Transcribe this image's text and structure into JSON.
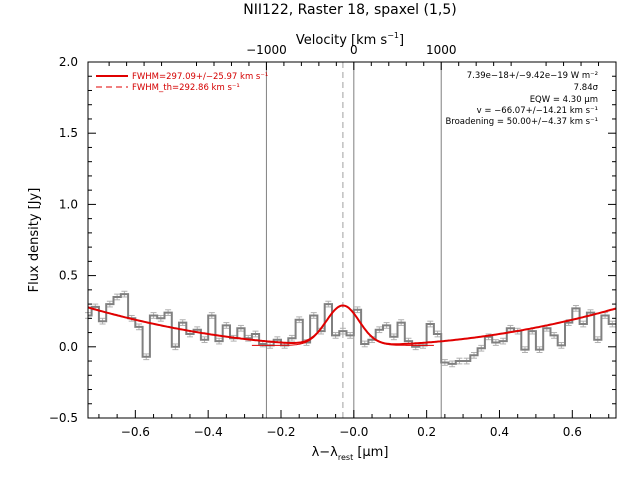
{
  "chart_data": {
    "type": "line",
    "title": "NII122, Raster 18, spaxel (1,5)",
    "xlabel": "λ−λ_rest [μm]",
    "xlabel_parts": {
      "main": "λ−λ",
      "sub": "rest",
      "rest": " [μm]"
    },
    "ylabel": "Flux density [Jy]",
    "top_axis_label": "Velocity [km s⁻¹]",
    "top_axis_label_parts": {
      "main": "Velocity [km s",
      "sup": "−1",
      "end": "]"
    },
    "xlim": [
      -0.73,
      0.72
    ],
    "ylim": [
      -0.5,
      2.0
    ],
    "x_ticks": [
      -0.6,
      -0.4,
      -0.2,
      0.0,
      0.2,
      0.4,
      0.6
    ],
    "x_tick_labels": [
      "−0.6",
      "−0.4",
      "−0.2",
      "−0.0",
      "0.2",
      "0.4",
      "0.6"
    ],
    "y_ticks": [
      -0.5,
      0.0,
      0.5,
      1.0,
      1.5,
      2.0
    ],
    "y_tick_labels": [
      "−0.5",
      "0.0",
      "0.5",
      "1.0",
      "1.5",
      "2.0"
    ],
    "top_ticks": [
      -1000,
      0,
      1000
    ],
    "top_tick_labels": [
      "−1000",
      "0",
      "1000"
    ],
    "vertical_lines": [
      -0.24,
      0.0,
      0.24
    ],
    "dashed_line_x": -0.03,
    "legend": [
      {
        "label": "FWHM=297.09+/−25.97 km s⁻¹",
        "style": "solid"
      },
      {
        "label": "FWHM_th=292.86 km s⁻¹",
        "style": "dashed"
      }
    ],
    "annotations": [
      "7.39e−18+/−9.42e−19 W m⁻²",
      "7.84σ",
      "EQW = 4.30 μm",
      "v = −66.07+/−14.21 km s⁻¹",
      "Broadening = 50.00+/−4.37 km s⁻¹"
    ],
    "spectrum": {
      "x": [
        -0.73,
        -0.71,
        -0.69,
        -0.67,
        -0.65,
        -0.63,
        -0.61,
        -0.59,
        -0.57,
        -0.55,
        -0.53,
        -0.51,
        -0.49,
        -0.47,
        -0.45,
        -0.43,
        -0.41,
        -0.39,
        -0.37,
        -0.35,
        -0.33,
        -0.31,
        -0.29,
        -0.27,
        -0.25,
        -0.23,
        -0.21,
        -0.19,
        -0.17,
        -0.15,
        -0.13,
        -0.11,
        -0.09,
        -0.07,
        -0.05,
        -0.03,
        -0.01,
        0.01,
        0.03,
        0.05,
        0.07,
        0.09,
        0.11,
        0.13,
        0.15,
        0.17,
        0.19,
        0.21,
        0.23,
        0.25,
        0.27,
        0.29,
        0.31,
        0.33,
        0.35,
        0.37,
        0.39,
        0.41,
        0.43,
        0.45,
        0.47,
        0.49,
        0.51,
        0.53,
        0.55,
        0.57,
        0.59,
        0.61,
        0.63,
        0.65,
        0.67,
        0.69,
        0.71
      ],
      "y": [
        0.22,
        0.28,
        0.18,
        0.3,
        0.35,
        0.37,
        0.2,
        0.14,
        -0.07,
        0.22,
        0.2,
        0.24,
        0.0,
        0.17,
        0.09,
        0.12,
        0.05,
        0.22,
        0.04,
        0.15,
        0.06,
        0.13,
        0.06,
        0.09,
        0.02,
        0.01,
        0.05,
        0.01,
        0.06,
        0.19,
        0.03,
        0.22,
        0.11,
        0.3,
        0.08,
        0.11,
        0.08,
        0.26,
        0.02,
        0.05,
        0.12,
        0.15,
        0.07,
        0.17,
        0.04,
        0.0,
        0.01,
        0.16,
        0.09,
        -0.11,
        -0.12,
        -0.1,
        -0.1,
        -0.06,
        -0.01,
        0.07,
        0.03,
        0.04,
        0.13,
        0.11,
        -0.02,
        0.11,
        -0.02,
        0.13,
        0.08,
        0.01,
        0.17,
        0.27,
        0.16,
        0.24,
        0.05,
        0.22,
        0.16
      ]
    },
    "fit_model": {
      "type": "quadratic_baseline_plus_gaussian",
      "baseline_center": 0.0,
      "baseline_offset": 0.01,
      "baseline_curvature": 0.5,
      "gaussian_amplitude": 0.28,
      "gaussian_center": -0.03,
      "gaussian_sigma": 0.045
    },
    "colors": {
      "data": "#808080",
      "fit": "#e00000",
      "axes": "#000000",
      "vlines": "#808080"
    }
  }
}
